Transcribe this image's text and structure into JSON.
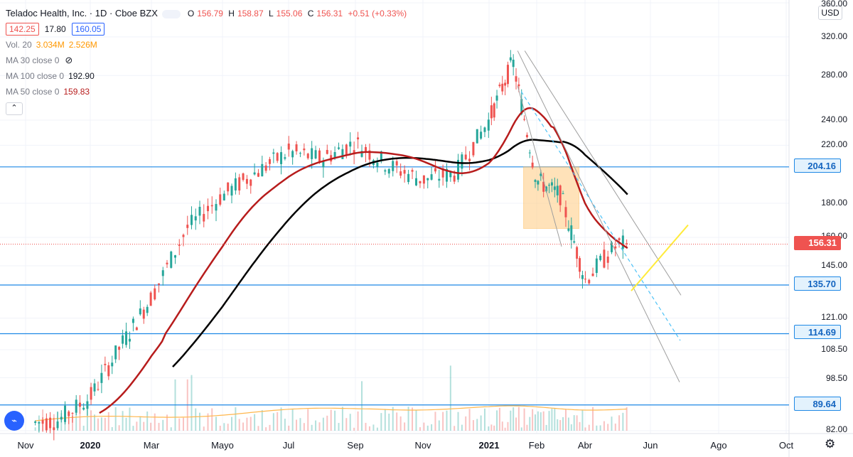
{
  "header": {
    "title": "Teladoc Health, Inc. · 1D · Cboe BZX",
    "open_label": "O",
    "open": "156.79",
    "high_label": "H",
    "high": "158.87",
    "low_label": "L",
    "low": "155.06",
    "close_label": "C",
    "close": "156.31",
    "change": "+0.51 (+0.33%)",
    "bid": "142.25",
    "spread": "17.80",
    "ask": "160.05"
  },
  "indicators": {
    "vol_label": "Vol. 20",
    "vol_value1": "3.034M",
    "vol_value2": "2.526M",
    "ma30_label": "MA 30 close 0",
    "ma100_label": "MA 100 close 0",
    "ma100_value": "192.90",
    "ma50_label": "MA 50 close 0",
    "ma50_value": "159.83"
  },
  "currency": "USD",
  "price_axis": [
    "360.00",
    "320.00",
    "280.00",
    "240.00",
    "220.00",
    "180.00",
    "160.00",
    "145.00",
    "121.00",
    "108.50",
    "98.50",
    "82.00"
  ],
  "badges": {
    "h1": "204.16",
    "last": "156.31",
    "h2": "135.70",
    "h3": "114.69",
    "h4": "89.64"
  },
  "time_axis": [
    {
      "label": "Nov",
      "bold": false
    },
    {
      "label": "2020",
      "bold": true
    },
    {
      "label": "Mar",
      "bold": false
    },
    {
      "label": "Mayo",
      "bold": false
    },
    {
      "label": "Jul",
      "bold": false
    },
    {
      "label": "Sep",
      "bold": false
    },
    {
      "label": "Nov",
      "bold": false
    },
    {
      "label": "2021",
      "bold": true
    },
    {
      "label": "Feb",
      "bold": false
    },
    {
      "label": "Abr",
      "bold": false
    },
    {
      "label": "Jun",
      "bold": false
    },
    {
      "label": "Ago",
      "bold": false
    },
    {
      "label": "Oct",
      "bold": false
    }
  ],
  "colors": {
    "up": "#26a69a",
    "down": "#ef5350",
    "ma50": "#b71c1c",
    "ma100": "#000000",
    "hline": "#1e88e5",
    "rect": "#ffcc80",
    "trend_up": "#ffeb3b",
    "channel": "#9e9e9e",
    "dashed": "#4fc3f7",
    "volume": "#ffb74d"
  },
  "chart_data": {
    "type": "candlestick",
    "scale": "log",
    "ylim": [
      82,
      360
    ],
    "x": [
      "2019-11",
      "2020-01",
      "2020-03",
      "2020-05",
      "2020-07",
      "2020-09",
      "2020-11",
      "2021-01",
      "2021-02",
      "2021-04",
      "2021-06",
      "2021-08",
      "2021-10"
    ],
    "close_path": [
      [
        "2019-11",
        84
      ],
      [
        "2019-12",
        85
      ],
      [
        "2020-01",
        92
      ],
      [
        "2020-02",
        110
      ],
      [
        "2020-03",
        130
      ],
      [
        "2020-04",
        165
      ],
      [
        "2020-05",
        185
      ],
      [
        "2020-06",
        200
      ],
      [
        "2020-07",
        215
      ],
      [
        "2020-08",
        210
      ],
      [
        "2020-09",
        222
      ],
      [
        "2020-10",
        205
      ],
      [
        "2020-11",
        195
      ],
      [
        "2020-12",
        200
      ],
      [
        "2021-01",
        240
      ],
      [
        "2021-02",
        294
      ],
      [
        "2021-03",
        195
      ],
      [
        "2021-04",
        185
      ],
      [
        "2021-05",
        138
      ],
      [
        "2021-06",
        156.31
      ]
    ],
    "series": [
      {
        "name": "MA 50 close 0",
        "last": 159.83
      },
      {
        "name": "MA 100 close 0",
        "last": 192.9
      }
    ],
    "horizontal_lines": [
      204.16,
      135.7,
      114.69,
      89.64
    ],
    "last_price": 156.31
  }
}
